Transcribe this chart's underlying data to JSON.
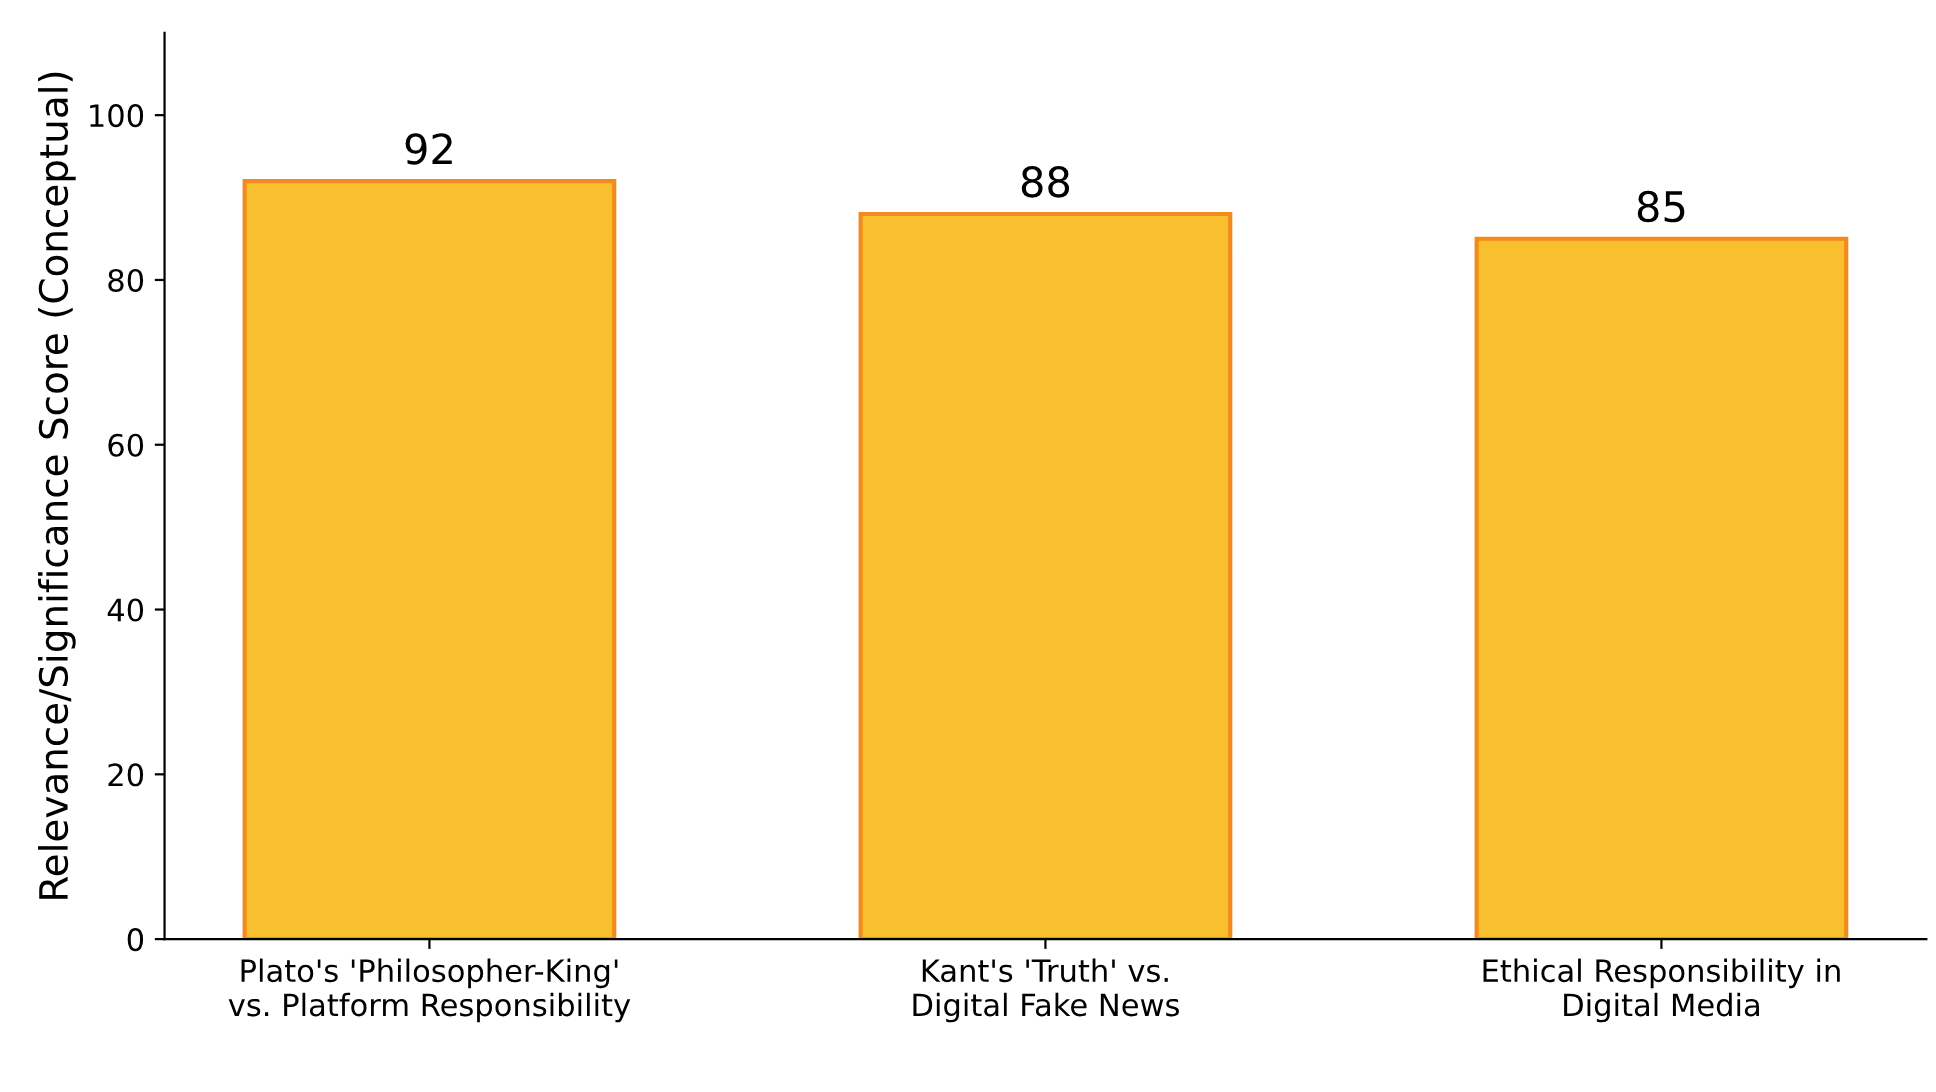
{
  "chart_data": {
    "type": "bar",
    "ylabel": "Relevance/Significance Score (Conceptual)",
    "categories": [
      "Plato's 'Philosopher-King'\nvs. Platform Responsibility",
      "Kant's 'Truth' vs.\nDigital Fake News",
      "Ethical Responsibility in\nDigital Media"
    ],
    "values": [
      92,
      88,
      85
    ],
    "color": "#f8bf2f",
    "data_labels": true,
    "ylim": [
      0,
      110
    ],
    "yticks": [
      0,
      20,
      40,
      60,
      80,
      100
    ],
    "grid": false,
    "legend": false
  }
}
